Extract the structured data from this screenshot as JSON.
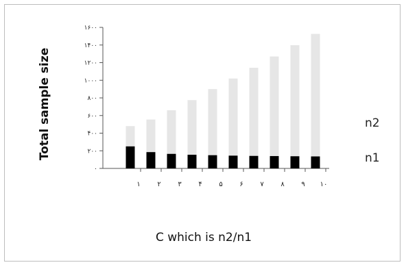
{
  "chart_data": {
    "type": "bar",
    "stacked": true,
    "ylabel": "Total sample size",
    "xlabel": "C which is n2/n1",
    "ylim": [
      0,
      1600
    ],
    "y_ticks": [
      0,
      200,
      400,
      600,
      800,
      1000,
      1200,
      1400,
      1600
    ],
    "y_tick_labels": [
      "۰",
      "۲۰۰",
      "۴۰۰",
      "۶۰۰",
      "۸۰۰",
      "۱۰۰۰",
      "۱۲۰۰",
      "۱۴۰۰",
      "۱۶۰۰"
    ],
    "x_tick_labels": [
      "۱",
      "۲",
      "۳",
      "۴",
      "۵",
      "۶",
      "۷",
      "۸",
      "۹",
      "۱۰"
    ],
    "categories": [
      "1",
      "2",
      "3",
      "4",
      "5",
      "6",
      "7",
      "8",
      "9",
      "10"
    ],
    "series": [
      {
        "name": "n1",
        "color": "#000000",
        "values": [
          250,
          185,
          165,
          155,
          150,
          145,
          142,
          140,
          138,
          136
        ]
      },
      {
        "name": "n2",
        "color": "#e6e6e6",
        "values": [
          230,
          370,
          495,
          620,
          750,
          875,
          1000,
          1130,
          1260,
          1390
        ]
      }
    ],
    "legend": [
      "n2",
      "n1"
    ],
    "legend_position": "right"
  }
}
